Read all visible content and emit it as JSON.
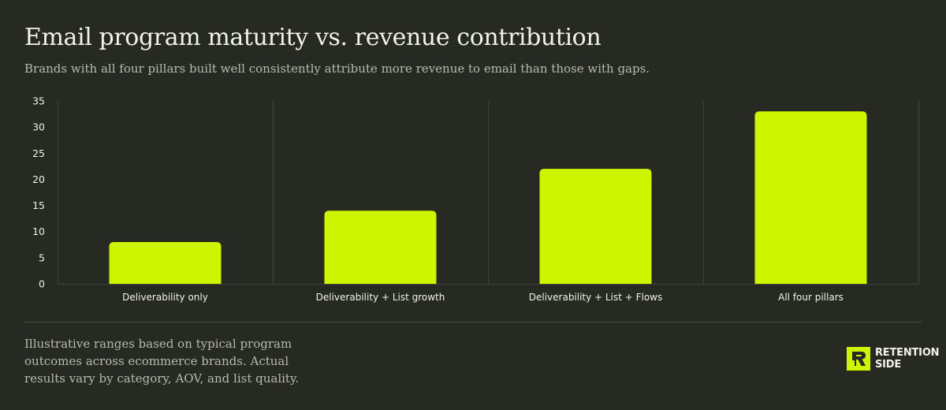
{
  "header": {
    "title": "Email program maturity vs. revenue contribution",
    "subtitle": "Brands with all four pillars built well consistently attribute more revenue to email than those with gaps."
  },
  "chart_data": {
    "type": "bar",
    "categories": [
      "Deliverability only",
      "Deliverability + List growth",
      "Deliverability + List + Flows",
      "All four pillars"
    ],
    "values": [
      8,
      14,
      22,
      33
    ],
    "ylim": [
      0,
      35
    ],
    "yticks": [
      "0",
      "5",
      "10",
      "15",
      "20",
      "25",
      "30",
      "35"
    ],
    "title": "",
    "xlabel": "",
    "ylabel": "",
    "grid": "vertical category separators",
    "legend": "none"
  },
  "footer": {
    "note": "Illustrative ranges based on typical program outcomes across ecommerce brands. Actual results vary by category, AOV, and list quality."
  },
  "logo": {
    "line1": "RETENTION",
    "line2": "SIDE"
  },
  "colors": {
    "background": "#272a22",
    "bar": "#cdf500",
    "text": "#f1f2ea",
    "muted_text": "#b8baae",
    "grid": "#41443b"
  }
}
